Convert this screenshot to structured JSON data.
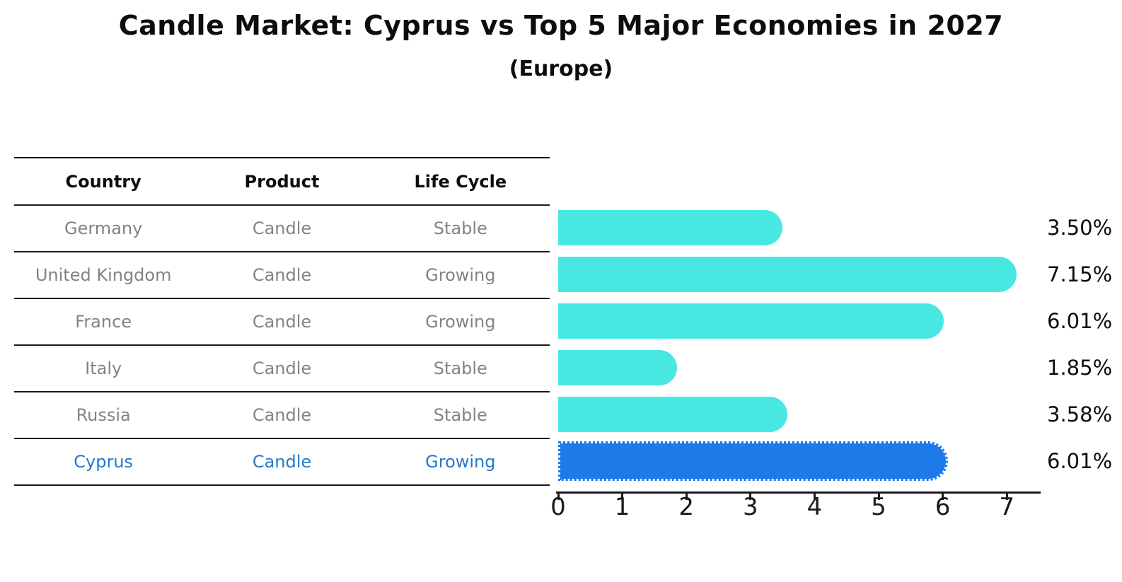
{
  "title": "Candle Market: Cyprus vs Top 5 Major Economies in 2027",
  "subtitle": "(Europe)",
  "table": {
    "headers": [
      "Country",
      "Product",
      "Life Cycle"
    ],
    "rows": [
      {
        "country": "Germany",
        "product": "Candle",
        "life_cycle": "Stable"
      },
      {
        "country": "United Kingdom",
        "product": "Candle",
        "life_cycle": "Growing"
      },
      {
        "country": "France",
        "product": "Candle",
        "life_cycle": "Growing"
      },
      {
        "country": "Italy",
        "product": "Candle",
        "life_cycle": "Stable"
      },
      {
        "country": "Russia",
        "product": "Candle",
        "life_cycle": "Stable"
      },
      {
        "country": "Cyprus",
        "product": "Candle",
        "life_cycle": "Growing"
      }
    ]
  },
  "chart_data": {
    "type": "bar",
    "orientation": "horizontal",
    "title": "Candle Market: Cyprus vs Top 5 Major Economies in 2027",
    "subtitle": "(Europe)",
    "categories": [
      "Germany",
      "United Kingdom",
      "France",
      "Italy",
      "Russia",
      "Cyprus"
    ],
    "values": [
      3.5,
      7.15,
      6.01,
      1.85,
      3.58,
      6.01
    ],
    "value_labels": [
      "3.50%",
      "7.15%",
      "6.01%",
      "1.85%",
      "3.58%",
      "6.01%"
    ],
    "highlight_index": 5,
    "x_ticks": [
      "0",
      "1",
      "2",
      "3",
      "4",
      "5",
      "6",
      "7"
    ],
    "xlim": [
      0,
      7.5
    ],
    "grid": false,
    "legend": false
  },
  "colors": {
    "bar": "#49e7e1",
    "highlight_bar": "#1e7ae8",
    "highlight_text": "#2679ce",
    "row_text": "#838383",
    "heading_text": "#0d0d0d",
    "axis_line": "#1a1a1a"
  }
}
